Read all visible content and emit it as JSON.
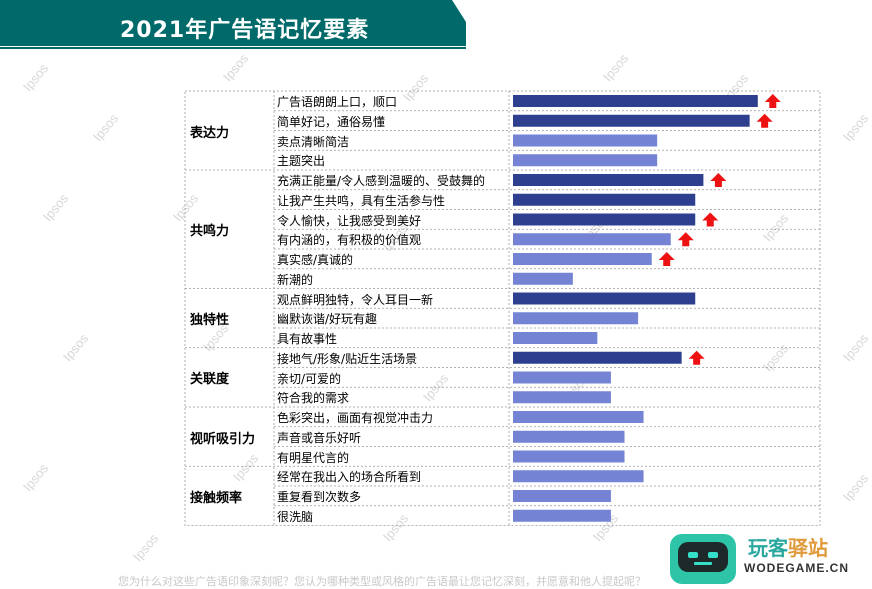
{
  "page_title": "2021年广告语记忆要素",
  "watermark": "Ipsos",
  "bottom_text": "您为什么对这些广告语印象深刻呢？您认为哪种类型或风格的广告语最让您记忆深刻，并愿意和他人提起呢？",
  "logo": {
    "name_part1": "玩客",
    "name_part2": "驿站",
    "url": "WODEGAME.CN"
  },
  "colors": {
    "banner": "#006a6a",
    "bar_dark": "#2e3f8f",
    "bar_light": "#7483d4",
    "arrow": "#ee1111",
    "grid": "#999999"
  },
  "chart_data": {
    "type": "bar",
    "orientation": "horizontal",
    "title": "2021年广告语记忆要素",
    "xlim": [
      0,
      100
    ],
    "groups": [
      {
        "name": "表达力",
        "items": [
          {
            "label": "广告语朗朗上口，顺口",
            "value": 90,
            "emphasis": true,
            "up": true
          },
          {
            "label": "简单好记，通俗易懂",
            "value": 87,
            "emphasis": true,
            "up": true
          },
          {
            "label": "卖点清晰简洁",
            "value": 53,
            "emphasis": false,
            "up": false
          },
          {
            "label": "主题突出",
            "value": 53,
            "emphasis": false,
            "up": false
          }
        ]
      },
      {
        "name": "共鸣力",
        "items": [
          {
            "label": "充满正能量/令人感到温暖的、受鼓舞的",
            "value": 70,
            "emphasis": true,
            "up": true
          },
          {
            "label": "让我产生共鸣，具有生活参与性",
            "value": 67,
            "emphasis": true,
            "up": false
          },
          {
            "label": "令人愉快，让我感受到美好",
            "value": 67,
            "emphasis": true,
            "up": true
          },
          {
            "label": "有内涵的，有积极的价值观",
            "value": 58,
            "emphasis": false,
            "up": true
          },
          {
            "label": "真实感/真诚的",
            "value": 51,
            "emphasis": false,
            "up": true
          },
          {
            "label": "新潮的",
            "value": 22,
            "emphasis": false,
            "up": false
          }
        ]
      },
      {
        "name": "独特性",
        "items": [
          {
            "label": "观点鲜明独特，令人耳目一新",
            "value": 67,
            "emphasis": true,
            "up": false
          },
          {
            "label": "幽默诙谐/好玩有趣",
            "value": 46,
            "emphasis": false,
            "up": false
          },
          {
            "label": "具有故事性",
            "value": 31,
            "emphasis": false,
            "up": false
          }
        ]
      },
      {
        "name": "关联度",
        "items": [
          {
            "label": "接地气/形象/贴近生活场景",
            "value": 62,
            "emphasis": true,
            "up": true
          },
          {
            "label": "亲切/可爱的",
            "value": 36,
            "emphasis": false,
            "up": false
          },
          {
            "label": "符合我的需求",
            "value": 36,
            "emphasis": false,
            "up": false
          }
        ]
      },
      {
        "name": "视听吸引力",
        "items": [
          {
            "label": "色彩突出，画面有视觉冲击力",
            "value": 48,
            "emphasis": false,
            "up": false
          },
          {
            "label": "声音或音乐好听",
            "value": 41,
            "emphasis": false,
            "up": false
          },
          {
            "label": "有明星代言的",
            "value": 41,
            "emphasis": false,
            "up": false
          }
        ]
      },
      {
        "name": "接触频率",
        "items": [
          {
            "label": "经常在我出入的场合所看到",
            "value": 48,
            "emphasis": false,
            "up": false
          },
          {
            "label": "重复看到次数多",
            "value": 36,
            "emphasis": false,
            "up": false
          },
          {
            "label": "很洗脑",
            "value": 36,
            "emphasis": false,
            "up": false
          }
        ]
      }
    ]
  }
}
